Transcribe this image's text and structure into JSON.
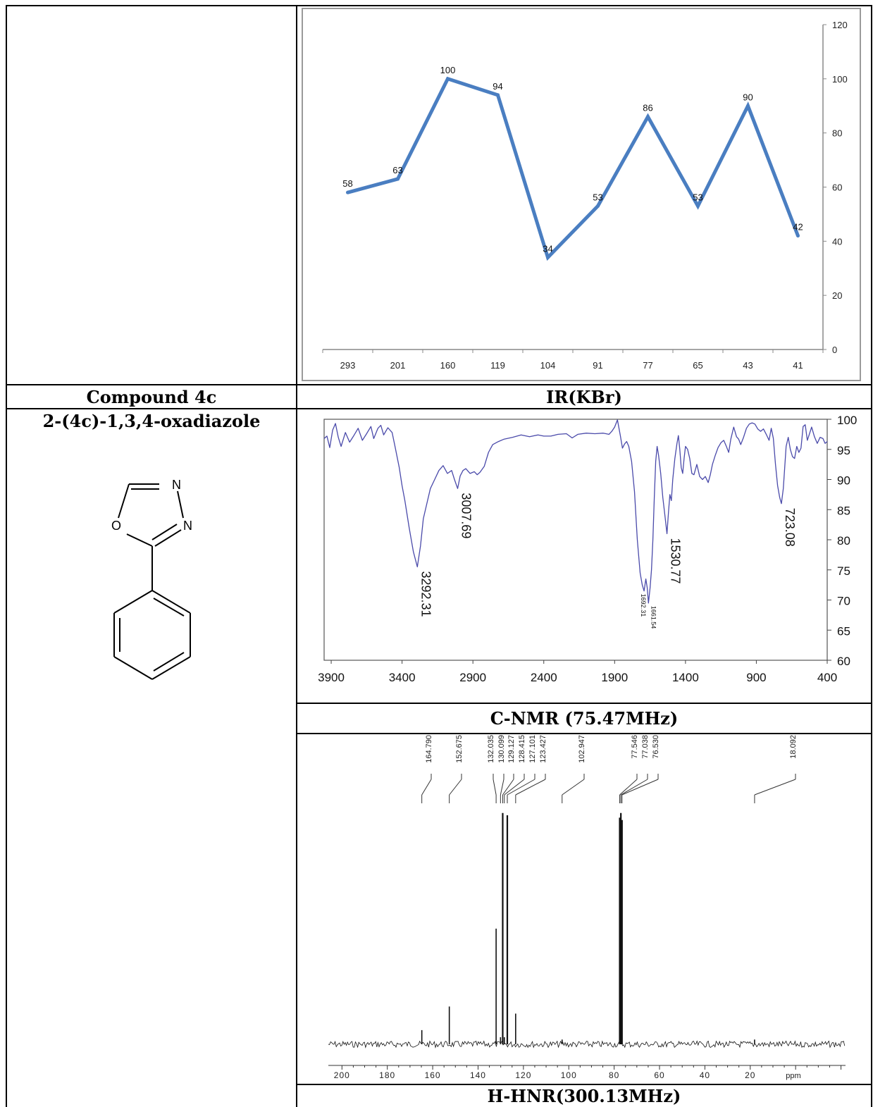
{
  "table": {
    "row2_left": "Compound 4c",
    "row2_right": "IR(KBr)",
    "compound_name": "2-(4c)-1,3,4-oxadiazole",
    "cnmr_title": "C-NMR (75.47MHz)",
    "hnmr_title": "H-HNR(300.13MHz)"
  },
  "structure": {
    "atoms": [
      "N",
      "N",
      "O"
    ]
  },
  "colors": {
    "mass_line": "#4a7ec1",
    "ir_line": "#4a4aaa",
    "border": "#000000",
    "frame": "#9a9a9a"
  },
  "chart_data": [
    {
      "type": "line",
      "categories": [
        "293",
        "201",
        "160",
        "119",
        "104",
        "91",
        "77",
        "65",
        "43",
        "41"
      ],
      "values": [
        58,
        63,
        100,
        94,
        34,
        53,
        86,
        53,
        90,
        42
      ],
      "data_labels": [
        "58",
        "63",
        "100",
        "94",
        "34",
        "53",
        "86",
        "53",
        "90",
        "42"
      ],
      "ylim": [
        0,
        120
      ],
      "yticks": [
        "0",
        "20",
        "40",
        "60",
        "80",
        "100",
        "120"
      ],
      "y_axis_side": "right",
      "grid": false,
      "legend": "none"
    },
    {
      "type": "line",
      "x_axis": "reversed",
      "xlim": [
        3950,
        400
      ],
      "ylim": [
        60,
        100
      ],
      "xticks": [
        "3900",
        "3400",
        "2900",
        "2400",
        "1900",
        "1400",
        "900",
        "400"
      ],
      "yticks": [
        "100",
        "95",
        "90",
        "85",
        "80",
        "75",
        "70",
        "65",
        "60"
      ],
      "y_axis_side": "right",
      "peaks": [
        {
          "x": 3292.31,
          "y": 75.5,
          "label": "3292.31"
        },
        {
          "x": 3007.69,
          "y": 88.5,
          "label": "3007.69"
        },
        {
          "x": 1692.31,
          "y": 71.5,
          "label": "1692.31"
        },
        {
          "x": 1661.54,
          "y": 69.5,
          "label": "1661.54"
        },
        {
          "x": 1530.77,
          "y": 81.0,
          "label": "1530.77"
        },
        {
          "x": 723.08,
          "y": 86.0,
          "label": "723.08"
        }
      ],
      "spectrum": [
        [
          3950,
          96.8
        ],
        [
          3930,
          97.2
        ],
        [
          3910,
          95.3
        ],
        [
          3890,
          98.2
        ],
        [
          3870,
          99.3
        ],
        [
          3850,
          97.0
        ],
        [
          3830,
          95.5
        ],
        [
          3800,
          97.8
        ],
        [
          3770,
          96.2
        ],
        [
          3740,
          97.3
        ],
        [
          3710,
          98.5
        ],
        [
          3680,
          96.5
        ],
        [
          3650,
          97.6
        ],
        [
          3620,
          98.8
        ],
        [
          3600,
          96.8
        ],
        [
          3570,
          98.5
        ],
        [
          3550,
          99.0
        ],
        [
          3530,
          97.4
        ],
        [
          3500,
          98.6
        ],
        [
          3470,
          97.8
        ],
        [
          3450,
          95.5
        ],
        [
          3420,
          92.0
        ],
        [
          3400,
          89.0
        ],
        [
          3380,
          86.5
        ],
        [
          3350,
          82.0
        ],
        [
          3320,
          78.0
        ],
        [
          3292.31,
          75.5
        ],
        [
          3270,
          79.0
        ],
        [
          3250,
          83.5
        ],
        [
          3220,
          86.5
        ],
        [
          3200,
          88.5
        ],
        [
          3170,
          90.0
        ],
        [
          3140,
          91.5
        ],
        [
          3110,
          92.3
        ],
        [
          3080,
          91.0
        ],
        [
          3050,
          91.5
        ],
        [
          3030,
          90.0
        ],
        [
          3007.69,
          88.5
        ],
        [
          2990,
          90.6
        ],
        [
          2970,
          91.5
        ],
        [
          2950,
          91.8
        ],
        [
          2920,
          91.0
        ],
        [
          2890,
          91.3
        ],
        [
          2870,
          90.8
        ],
        [
          2850,
          91.2
        ],
        [
          2820,
          92.2
        ],
        [
          2790,
          94.5
        ],
        [
          2760,
          95.8
        ],
        [
          2720,
          96.3
        ],
        [
          2680,
          96.7
        ],
        [
          2620,
          97.0
        ],
        [
          2560,
          97.4
        ],
        [
          2500,
          97.1
        ],
        [
          2440,
          97.4
        ],
        [
          2400,
          97.2
        ],
        [
          2350,
          97.2
        ],
        [
          2300,
          97.5
        ],
        [
          2240,
          97.6
        ],
        [
          2200,
          96.9
        ],
        [
          2160,
          97.5
        ],
        [
          2100,
          97.7
        ],
        [
          2040,
          97.6
        ],
        [
          1980,
          97.7
        ],
        [
          1940,
          97.5
        ],
        [
          1920,
          98.0
        ],
        [
          1900,
          98.7
        ],
        [
          1880,
          99.9
        ],
        [
          1860,
          97.3
        ],
        [
          1845,
          95.2
        ],
        [
          1830,
          95.9
        ],
        [
          1815,
          96.3
        ],
        [
          1800,
          95.5
        ],
        [
          1780,
          93.0
        ],
        [
          1760,
          88.0
        ],
        [
          1740,
          80.0
        ],
        [
          1720,
          74.5
        ],
        [
          1705,
          72.5
        ],
        [
          1692.31,
          71.5
        ],
        [
          1680,
          73.5
        ],
        [
          1670,
          72.0
        ],
        [
          1661.54,
          69.5
        ],
        [
          1650,
          72.0
        ],
        [
          1640,
          75.0
        ],
        [
          1630,
          80.0
        ],
        [
          1620,
          87.0
        ],
        [
          1610,
          93.0
        ],
        [
          1600,
          95.5
        ],
        [
          1590,
          94.0
        ],
        [
          1575,
          91.0
        ],
        [
          1560,
          87.0
        ],
        [
          1545,
          84.0
        ],
        [
          1530.77,
          81.0
        ],
        [
          1520,
          84.5
        ],
        [
          1510,
          87.5
        ],
        [
          1500,
          86.5
        ],
        [
          1490,
          90.0
        ],
        [
          1475,
          93.5
        ],
        [
          1460,
          96.0
        ],
        [
          1450,
          97.3
        ],
        [
          1440,
          95.0
        ],
        [
          1430,
          92.0
        ],
        [
          1420,
          91.0
        ],
        [
          1410,
          93.5
        ],
        [
          1400,
          95.5
        ],
        [
          1385,
          95.0
        ],
        [
          1370,
          93.5
        ],
        [
          1355,
          91.0
        ],
        [
          1340,
          90.8
        ],
        [
          1320,
          92.5
        ],
        [
          1300,
          90.5
        ],
        [
          1280,
          90.0
        ],
        [
          1260,
          90.5
        ],
        [
          1240,
          89.5
        ],
        [
          1225,
          90.8
        ],
        [
          1210,
          92.5
        ],
        [
          1190,
          94.0
        ],
        [
          1170,
          95.3
        ],
        [
          1150,
          96.1
        ],
        [
          1130,
          96.5
        ],
        [
          1110,
          95.4
        ],
        [
          1095,
          94.5
        ],
        [
          1080,
          96.7
        ],
        [
          1060,
          98.7
        ],
        [
          1040,
          97.1
        ],
        [
          1025,
          96.7
        ],
        [
          1010,
          95.8
        ],
        [
          990,
          97.0
        ],
        [
          970,
          98.5
        ],
        [
          950,
          99.2
        ],
        [
          930,
          99.4
        ],
        [
          910,
          99.2
        ],
        [
          890,
          98.4
        ],
        [
          870,
          98.0
        ],
        [
          850,
          98.4
        ],
        [
          830,
          97.5
        ],
        [
          810,
          96.5
        ],
        [
          795,
          98.5
        ],
        [
          780,
          96.8
        ],
        [
          765,
          92.5
        ],
        [
          750,
          89.0
        ],
        [
          735,
          87.0
        ],
        [
          723.08,
          86.0
        ],
        [
          710,
          88.5
        ],
        [
          700,
          92.0
        ],
        [
          690,
          95.5
        ],
        [
          675,
          97.0
        ],
        [
          660,
          95.0
        ],
        [
          645,
          93.8
        ],
        [
          630,
          93.5
        ],
        [
          615,
          95.5
        ],
        [
          600,
          94.5
        ],
        [
          585,
          95.2
        ],
        [
          570,
          98.8
        ],
        [
          555,
          99.1
        ],
        [
          540,
          96.5
        ],
        [
          525,
          97.6
        ],
        [
          510,
          98.7
        ],
        [
          490,
          97.1
        ],
        [
          470,
          96.0
        ],
        [
          450,
          97.0
        ],
        [
          430,
          96.8
        ],
        [
          415,
          96.0
        ],
        [
          400,
          96.3
        ]
      ]
    },
    {
      "type": "line",
      "x_axis": "reversed",
      "xlim": [
        206,
        -22
      ],
      "xticks": [
        "200",
        "180",
        "160",
        "140",
        "120",
        "100",
        "80",
        "60",
        "40",
        "20"
      ],
      "x_unit": "ppm",
      "peaks": [
        {
          "ppm": 164.79,
          "label": "164.790",
          "height": 0.06
        },
        {
          "ppm": 152.675,
          "label": "152.675",
          "height": 0.16
        },
        {
          "ppm": 132.035,
          "label": "132.035",
          "height": 0.49
        },
        {
          "ppm": 130.099,
          "label": "130.099",
          "height": 0.03
        },
        {
          "ppm": 129.127,
          "label": "129.127",
          "height": 0.98
        },
        {
          "ppm": 128.415,
          "label": "128.415",
          "height": 0.03
        },
        {
          "ppm": 127.101,
          "label": "127.101",
          "height": 0.97
        },
        {
          "ppm": 123.427,
          "label": "123.427",
          "height": 0.13
        },
        {
          "ppm": 102.947,
          "label": "102.947",
          "height": 0.02
        },
        {
          "ppm": 77.546,
          "label": "77.546",
          "height": 0.96
        },
        {
          "ppm": 77.038,
          "label": "77.038",
          "height": 0.98
        },
        {
          "ppm": 76.53,
          "label": "76.530",
          "height": 0.95
        },
        {
          "ppm": 18.092,
          "label": "18.092",
          "height": 0.02
        }
      ]
    }
  ]
}
